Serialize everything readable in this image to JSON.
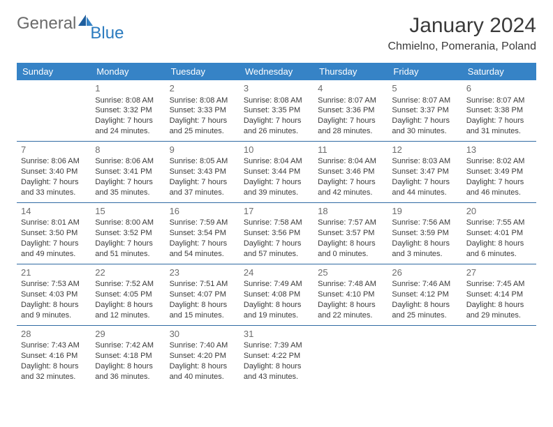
{
  "brand": {
    "part1": "General",
    "part2": "Blue"
  },
  "colors": {
    "header_bg": "#3683c6",
    "header_text": "#ffffff",
    "row_divider": "#2f6aa3",
    "text": "#3a3a3a",
    "muted": "#6a6a6a",
    "blue": "#2b7bbf",
    "daynum": "#6c6c6c",
    "background": "#ffffff"
  },
  "title": "January 2024",
  "location": "Chmielno, Pomerania, Poland",
  "days_of_week": [
    "Sunday",
    "Monday",
    "Tuesday",
    "Wednesday",
    "Thursday",
    "Friday",
    "Saturday"
  ],
  "fonts": {
    "title_size": 30,
    "location_size": 16,
    "cell_size": 11,
    "header_size": 13
  },
  "cells": [
    [
      null,
      {
        "n": "1",
        "sunrise": "8:08 AM",
        "sunset": "3:32 PM",
        "daylight": "7 hours and 24 minutes."
      },
      {
        "n": "2",
        "sunrise": "8:08 AM",
        "sunset": "3:33 PM",
        "daylight": "7 hours and 25 minutes."
      },
      {
        "n": "3",
        "sunrise": "8:08 AM",
        "sunset": "3:35 PM",
        "daylight": "7 hours and 26 minutes."
      },
      {
        "n": "4",
        "sunrise": "8:07 AM",
        "sunset": "3:36 PM",
        "daylight": "7 hours and 28 minutes."
      },
      {
        "n": "5",
        "sunrise": "8:07 AM",
        "sunset": "3:37 PM",
        "daylight": "7 hours and 30 minutes."
      },
      {
        "n": "6",
        "sunrise": "8:07 AM",
        "sunset": "3:38 PM",
        "daylight": "7 hours and 31 minutes."
      }
    ],
    [
      {
        "n": "7",
        "sunrise": "8:06 AM",
        "sunset": "3:40 PM",
        "daylight": "7 hours and 33 minutes."
      },
      {
        "n": "8",
        "sunrise": "8:06 AM",
        "sunset": "3:41 PM",
        "daylight": "7 hours and 35 minutes."
      },
      {
        "n": "9",
        "sunrise": "8:05 AM",
        "sunset": "3:43 PM",
        "daylight": "7 hours and 37 minutes."
      },
      {
        "n": "10",
        "sunrise": "8:04 AM",
        "sunset": "3:44 PM",
        "daylight": "7 hours and 39 minutes."
      },
      {
        "n": "11",
        "sunrise": "8:04 AM",
        "sunset": "3:46 PM",
        "daylight": "7 hours and 42 minutes."
      },
      {
        "n": "12",
        "sunrise": "8:03 AM",
        "sunset": "3:47 PM",
        "daylight": "7 hours and 44 minutes."
      },
      {
        "n": "13",
        "sunrise": "8:02 AM",
        "sunset": "3:49 PM",
        "daylight": "7 hours and 46 minutes."
      }
    ],
    [
      {
        "n": "14",
        "sunrise": "8:01 AM",
        "sunset": "3:50 PM",
        "daylight": "7 hours and 49 minutes."
      },
      {
        "n": "15",
        "sunrise": "8:00 AM",
        "sunset": "3:52 PM",
        "daylight": "7 hours and 51 minutes."
      },
      {
        "n": "16",
        "sunrise": "7:59 AM",
        "sunset": "3:54 PM",
        "daylight": "7 hours and 54 minutes."
      },
      {
        "n": "17",
        "sunrise": "7:58 AM",
        "sunset": "3:56 PM",
        "daylight": "7 hours and 57 minutes."
      },
      {
        "n": "18",
        "sunrise": "7:57 AM",
        "sunset": "3:57 PM",
        "daylight": "8 hours and 0 minutes."
      },
      {
        "n": "19",
        "sunrise": "7:56 AM",
        "sunset": "3:59 PM",
        "daylight": "8 hours and 3 minutes."
      },
      {
        "n": "20",
        "sunrise": "7:55 AM",
        "sunset": "4:01 PM",
        "daylight": "8 hours and 6 minutes."
      }
    ],
    [
      {
        "n": "21",
        "sunrise": "7:53 AM",
        "sunset": "4:03 PM",
        "daylight": "8 hours and 9 minutes."
      },
      {
        "n": "22",
        "sunrise": "7:52 AM",
        "sunset": "4:05 PM",
        "daylight": "8 hours and 12 minutes."
      },
      {
        "n": "23",
        "sunrise": "7:51 AM",
        "sunset": "4:07 PM",
        "daylight": "8 hours and 15 minutes."
      },
      {
        "n": "24",
        "sunrise": "7:49 AM",
        "sunset": "4:08 PM",
        "daylight": "8 hours and 19 minutes."
      },
      {
        "n": "25",
        "sunrise": "7:48 AM",
        "sunset": "4:10 PM",
        "daylight": "8 hours and 22 minutes."
      },
      {
        "n": "26",
        "sunrise": "7:46 AM",
        "sunset": "4:12 PM",
        "daylight": "8 hours and 25 minutes."
      },
      {
        "n": "27",
        "sunrise": "7:45 AM",
        "sunset": "4:14 PM",
        "daylight": "8 hours and 29 minutes."
      }
    ],
    [
      {
        "n": "28",
        "sunrise": "7:43 AM",
        "sunset": "4:16 PM",
        "daylight": "8 hours and 32 minutes."
      },
      {
        "n": "29",
        "sunrise": "7:42 AM",
        "sunset": "4:18 PM",
        "daylight": "8 hours and 36 minutes."
      },
      {
        "n": "30",
        "sunrise": "7:40 AM",
        "sunset": "4:20 PM",
        "daylight": "8 hours and 40 minutes."
      },
      {
        "n": "31",
        "sunrise": "7:39 AM",
        "sunset": "4:22 PM",
        "daylight": "8 hours and 43 minutes."
      },
      null,
      null,
      null
    ]
  ],
  "labels": {
    "sunrise": "Sunrise:",
    "sunset": "Sunset:",
    "daylight": "Daylight:"
  }
}
